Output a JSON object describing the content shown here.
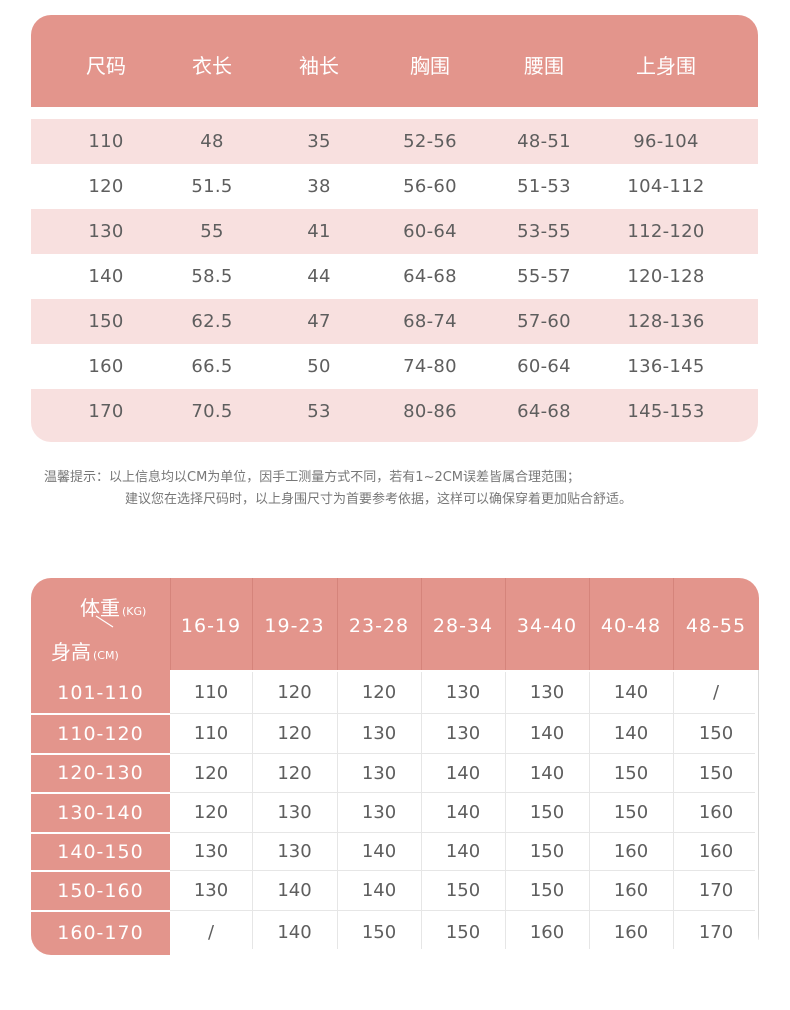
{
  "size_table": {
    "headers": [
      "尺码",
      "衣长",
      "袖长",
      "胸围",
      "腰围",
      "上身围"
    ],
    "rows": [
      [
        "110",
        "48",
        "35",
        "52-56",
        "48-51",
        "96-104"
      ],
      [
        "120",
        "51.5",
        "38",
        "56-60",
        "51-53",
        "104-112"
      ],
      [
        "130",
        "55",
        "41",
        "60-64",
        "53-55",
        "112-120"
      ],
      [
        "140",
        "58.5",
        "44",
        "64-68",
        "55-57",
        "120-128"
      ],
      [
        "150",
        "62.5",
        "47",
        "68-74",
        "57-60",
        "128-136"
      ],
      [
        "160",
        "66.5",
        "50",
        "74-80",
        "60-64",
        "136-145"
      ],
      [
        "170",
        "70.5",
        "53",
        "80-86",
        "64-68",
        "145-153"
      ]
    ]
  },
  "tip": {
    "line1": "温馨提示：以上信息均以CM为单位，因手工测量方式不同，若有1~2CM误差皆属合理范围；",
    "line2": "建议您在选择尺码时，以上身围尺寸为首要参考依据，这样可以确保穿着更加贴合舒适。"
  },
  "ref_table": {
    "weight_label": "体重",
    "weight_unit": "(KG)",
    "height_label": "身高",
    "height_unit": "(CM)",
    "weight_ranges": [
      "16-19",
      "19-23",
      "23-28",
      "28-34",
      "34-40",
      "40-48",
      "48-55"
    ],
    "height_ranges": [
      "101-110",
      "110-120",
      "120-130",
      "130-140",
      "140-150",
      "150-160",
      "160-170"
    ],
    "cells": [
      [
        "110",
        "120",
        "120",
        "130",
        "130",
        "140",
        "/"
      ],
      [
        "110",
        "120",
        "130",
        "130",
        "140",
        "140",
        "150"
      ],
      [
        "120",
        "120",
        "130",
        "140",
        "140",
        "150",
        "150"
      ],
      [
        "120",
        "130",
        "130",
        "140",
        "150",
        "150",
        "160"
      ],
      [
        "130",
        "130",
        "140",
        "140",
        "150",
        "160",
        "160"
      ],
      [
        "130",
        "140",
        "140",
        "150",
        "150",
        "160",
        "170"
      ],
      [
        "/",
        "140",
        "150",
        "150",
        "160",
        "160",
        "170"
      ]
    ]
  },
  "colors": {
    "header": "#e3958c",
    "stripe": "#f8e0df",
    "text": "#5e5e5e"
  }
}
